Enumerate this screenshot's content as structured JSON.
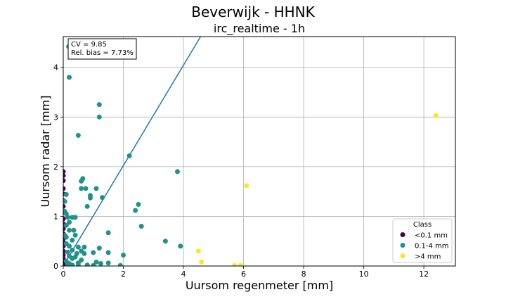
{
  "chart_data": {
    "type": "scatter",
    "suptitle": "Beverwijk - HHNK",
    "title": "irc_realtime - 1h",
    "xlabel": "Uursom regenmeter [mm]",
    "ylabel": "Uursom radar [mm]",
    "xlim": [
      0,
      13.05
    ],
    "ylim": [
      0,
      4.62
    ],
    "xticks": [
      "0",
      "2",
      "4",
      "6",
      "8",
      "10",
      "12"
    ],
    "yticks": [
      "0",
      "1",
      "2",
      "3",
      "4"
    ],
    "grid": true,
    "annotation": [
      "CV = 9.85",
      "Rel. bias = 7.73%"
    ],
    "line": {
      "x": [
        0,
        4.6
      ],
      "y": [
        0,
        4.65
      ],
      "color": "#1f77b4"
    },
    "legend": {
      "title": "Class",
      "position": "lower-right",
      "entries": [
        "<0.1 mm",
        "0.1-4 mm",
        ">4 mm"
      ]
    },
    "series": [
      {
        "name": "<0.1 mm",
        "color": "#440154",
        "points": [
          [
            0,
            1.9
          ],
          [
            0,
            1.82
          ],
          [
            0,
            1.72
          ],
          [
            0,
            1.56
          ],
          [
            0,
            1.45
          ],
          [
            0,
            1.32
          ],
          [
            0,
            1.2
          ],
          [
            0,
            1.08
          ],
          [
            0,
            0.95
          ],
          [
            0,
            0.85
          ],
          [
            0,
            0.75
          ],
          [
            0,
            0.65
          ],
          [
            0,
            0.55
          ],
          [
            0,
            0.48
          ],
          [
            0,
            0.4
          ],
          [
            0,
            0.3
          ],
          [
            0,
            0.22
          ],
          [
            0,
            0.15
          ],
          [
            0,
            0.08
          ],
          [
            0,
            0.03
          ]
        ]
      },
      {
        "name": "0.1-4 mm",
        "color": "#21918c",
        "points": [
          [
            0.18,
            4.42
          ],
          [
            0.2,
            3.8
          ],
          [
            1.2,
            3.25
          ],
          [
            1.2,
            3.0
          ],
          [
            0.5,
            2.63
          ],
          [
            2.2,
            2.22
          ],
          [
            3.8,
            1.9
          ],
          [
            0.65,
            1.76
          ],
          [
            0.6,
            1.71
          ],
          [
            0.6,
            1.56
          ],
          [
            0.75,
            1.56
          ],
          [
            1.1,
            1.56
          ],
          [
            0.9,
            1.42
          ],
          [
            1.3,
            1.38
          ],
          [
            0.9,
            1.37
          ],
          [
            0.1,
            1.44
          ],
          [
            0.05,
            1.3
          ],
          [
            2.5,
            1.24
          ],
          [
            0.8,
            1.2
          ],
          [
            2.4,
            1.12
          ],
          [
            0.05,
            1.1
          ],
          [
            0.1,
            1.05
          ],
          [
            0.15,
            0.98
          ],
          [
            0.3,
            0.98
          ],
          [
            0.4,
            0.98
          ],
          [
            0.2,
            0.88
          ],
          [
            0.1,
            0.82
          ],
          [
            2.6,
            0.8
          ],
          [
            0.2,
            0.72
          ],
          [
            0.35,
            0.72
          ],
          [
            1.5,
            0.67
          ],
          [
            0.05,
            0.62
          ],
          [
            0.4,
            0.62
          ],
          [
            0.1,
            0.58
          ],
          [
            0.3,
            0.52
          ],
          [
            3.4,
            0.5
          ],
          [
            0.1,
            0.45
          ],
          [
            3.9,
            0.4
          ],
          [
            0.2,
            0.4
          ],
          [
            0.5,
            0.38
          ],
          [
            0.7,
            0.38
          ],
          [
            1.2,
            0.36
          ],
          [
            0.3,
            0.32
          ],
          [
            0.6,
            0.3
          ],
          [
            0.15,
            0.28
          ],
          [
            1.5,
            0.27
          ],
          [
            1.0,
            0.27
          ],
          [
            0.7,
            0.25
          ],
          [
            0.45,
            0.25
          ],
          [
            2.0,
            0.22
          ],
          [
            0.2,
            0.2
          ],
          [
            0.4,
            0.18
          ],
          [
            0.3,
            0.15
          ],
          [
            0.6,
            0.12
          ],
          [
            0.1,
            0.1
          ],
          [
            1.1,
            0.08
          ],
          [
            0.5,
            0.06
          ],
          [
            1.25,
            0.05
          ],
          [
            1.5,
            0.06
          ],
          [
            0.2,
            0.05
          ],
          [
            0.8,
            0.02
          ],
          [
            0.3,
            0.02
          ],
          [
            1.9,
            0.01
          ],
          [
            1.0,
            0.01
          ],
          [
            0.5,
            0.01
          ],
          [
            0.15,
            0.02
          ]
        ]
      },
      {
        "name": ">4 mm",
        "color": "#fde725",
        "points": [
          [
            12.4,
            3.03
          ],
          [
            6.1,
            1.62
          ],
          [
            4.5,
            0.3
          ],
          [
            4.6,
            0.08
          ],
          [
            5.7,
            0.01
          ],
          [
            5.9,
            0.01
          ]
        ]
      }
    ]
  }
}
